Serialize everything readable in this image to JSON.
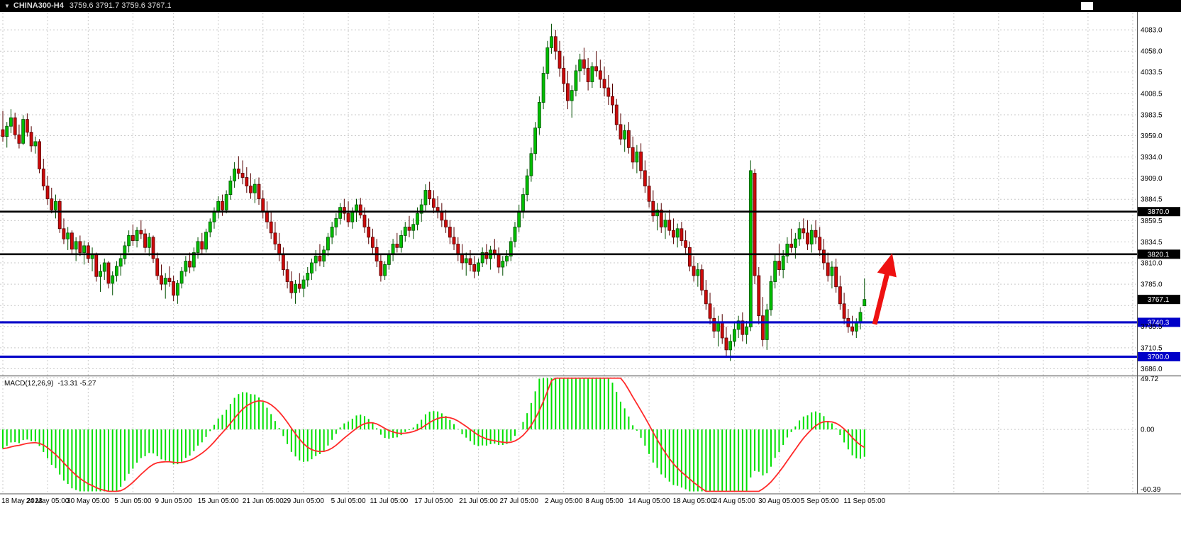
{
  "header": {
    "dropdown_icon": "▼",
    "symbol": "CHINA300-H4",
    "ohlc": "3759.6 3791.7 3759.6 3767.1"
  },
  "colors": {
    "background": "#FFFFFF",
    "grid": "#C9C9C9",
    "bull": "#00BE00",
    "bull_border": "#005000",
    "bear": "#CC0A0A",
    "bear_border": "#550000",
    "macd_hist": "#00DF00",
    "macd_signal": "#FF2A2A",
    "arrow": "#EE1111",
    "hline_black": "#000000",
    "hline_blue": "#0000C8",
    "axis_text": "#000000",
    "header_bg": "#000000",
    "header_text": "#DBDBDB",
    "badge_text": "#FFFFFF",
    "panel_border": "#808080"
  },
  "chart_data": {
    "type": "candlestick",
    "symbol": "CHINA300",
    "timeframe": "H4",
    "title": "CHINA300-H4",
    "ohlc_header": {
      "open": 3759.6,
      "high": 3791.7,
      "low": 3759.6,
      "close": 3767.1
    },
    "ylim": [
      3678,
      4103
    ],
    "grid": true,
    "price_axis_ticks": [
      "4083.0",
      "4058.0",
      "4033.5",
      "4008.5",
      "3983.5",
      "3959.0",
      "3934.0",
      "3909.0",
      "3884.5",
      "3859.5",
      "3834.5",
      "3810.0",
      "3785.0",
      "3760.0",
      "3735.5",
      "3710.5",
      "3686.0"
    ],
    "time_axis": [
      {
        "label": "18 May 2023",
        "i": 0
      },
      {
        "label": "24 May 05:00",
        "i": 11
      },
      {
        "label": "30 May 05:00",
        "i": 21
      },
      {
        "label": "5 Jun 05:00",
        "i": 32
      },
      {
        "label": "9 Jun 05:00",
        "i": 42
      },
      {
        "label": "15 Jun 05:00",
        "i": 53
      },
      {
        "label": "21 Jun 05:00",
        "i": 64
      },
      {
        "label": "29 Jun 05:00",
        "i": 74
      },
      {
        "label": "5 Jul 05:00",
        "i": 85
      },
      {
        "label": "11 Jul 05:00",
        "i": 95
      },
      {
        "label": "17 Jul 05:00",
        "i": 106
      },
      {
        "label": "21 Jul 05:00",
        "i": 117
      },
      {
        "label": "27 Jul 05:00",
        "i": 127
      },
      {
        "label": "2 Aug 05:00",
        "i": 138
      },
      {
        "label": "8 Aug 05:00",
        "i": 148
      },
      {
        "label": "14 Aug 05:00",
        "i": 159
      },
      {
        "label": "18 Aug 05:00",
        "i": 170
      },
      {
        "label": "24 Aug 05:00",
        "i": 180
      },
      {
        "label": "30 Aug 05:00",
        "i": 191
      },
      {
        "label": "5 Sep 05:00",
        "i": 201
      },
      {
        "label": "11 Sep 05:00",
        "i": 212
      }
    ],
    "hlines": [
      {
        "value": 3870.0,
        "label": "3870.0",
        "color": "#000000",
        "width": 2.6
      },
      {
        "value": 3820.1,
        "label": "3820.1",
        "color": "#000000",
        "width": 2.6
      },
      {
        "value": 3740.3,
        "label": "3740.3",
        "color": "#0000C8",
        "width": 3.2
      },
      {
        "value": 3700.0,
        "label": "3700.0",
        "color": "#0000C8",
        "width": 3.2
      }
    ],
    "last_price_badge": {
      "value": 3767.1,
      "label": "3767.1",
      "bg": "#000000"
    },
    "macd": {
      "label": "MACD(12,26,9)",
      "values_text": "-13.31 -5.27",
      "macd_value": -13.31,
      "signal_value": -5.27,
      "params": [
        12,
        26,
        9
      ],
      "scale": {
        "max": 49.72,
        "min": -60.39
      },
      "axis_ticks": [
        "49.72",
        "0.00",
        "-60.39"
      ]
    },
    "annotations": [
      {
        "type": "up-arrow",
        "color": "#EE1111",
        "from": {
          "i": 214.5,
          "price": 3738
        },
        "to": {
          "i": 218.5,
          "price": 3815
        }
      }
    ],
    "candles": [
      [
        3966,
        3988,
        3952,
        3958
      ],
      [
        3958,
        3975,
        3945,
        3970
      ],
      [
        3970,
        3990,
        3962,
        3980
      ],
      [
        3980,
        3986,
        3955,
        3960
      ],
      [
        3960,
        3972,
        3944,
        3950
      ],
      [
        3950,
        3983,
        3948,
        3978
      ],
      [
        3978,
        3985,
        3958,
        3963
      ],
      [
        3963,
        3970,
        3940,
        3947
      ],
      [
        3947,
        3958,
        3938,
        3952
      ],
      [
        3952,
        3955,
        3915,
        3920
      ],
      [
        3920,
        3932,
        3895,
        3900
      ],
      [
        3900,
        3912,
        3878,
        3885
      ],
      [
        3885,
        3898,
        3868,
        3872
      ],
      [
        3872,
        3890,
        3862,
        3882
      ],
      [
        3882,
        3885,
        3845,
        3850
      ],
      [
        3850,
        3862,
        3832,
        3838
      ],
      [
        3838,
        3852,
        3825,
        3845
      ],
      [
        3845,
        3848,
        3820,
        3826
      ],
      [
        3826,
        3840,
        3812,
        3835
      ],
      [
        3835,
        3842,
        3818,
        3822
      ],
      [
        3822,
        3836,
        3808,
        3830
      ],
      [
        3830,
        3834,
        3810,
        3815
      ],
      [
        3815,
        3828,
        3800,
        3820
      ],
      [
        3820,
        3822,
        3788,
        3794
      ],
      [
        3794,
        3808,
        3776,
        3800
      ],
      [
        3800,
        3815,
        3790,
        3810
      ],
      [
        3810,
        3812,
        3780,
        3786
      ],
      [
        3786,
        3800,
        3772,
        3795
      ],
      [
        3795,
        3812,
        3788,
        3806
      ],
      [
        3806,
        3820,
        3795,
        3815
      ],
      [
        3815,
        3835,
        3808,
        3830
      ],
      [
        3830,
        3848,
        3822,
        3842
      ],
      [
        3842,
        3855,
        3830,
        3836
      ],
      [
        3836,
        3852,
        3828,
        3848
      ],
      [
        3848,
        3860,
        3838,
        3844
      ],
      [
        3844,
        3850,
        3822,
        3828
      ],
      [
        3828,
        3845,
        3818,
        3840
      ],
      [
        3840,
        3842,
        3810,
        3815
      ],
      [
        3815,
        3822,
        3790,
        3795
      ],
      [
        3795,
        3808,
        3778,
        3785
      ],
      [
        3785,
        3798,
        3768,
        3792
      ],
      [
        3792,
        3806,
        3782,
        3788
      ],
      [
        3788,
        3795,
        3765,
        3772
      ],
      [
        3772,
        3790,
        3762,
        3786
      ],
      [
        3786,
        3805,
        3780,
        3800
      ],
      [
        3800,
        3818,
        3794,
        3812
      ],
      [
        3812,
        3822,
        3798,
        3805
      ],
      [
        3805,
        3828,
        3800,
        3822
      ],
      [
        3822,
        3840,
        3815,
        3835
      ],
      [
        3835,
        3845,
        3820,
        3826
      ],
      [
        3826,
        3850,
        3822,
        3846
      ],
      [
        3846,
        3862,
        3840,
        3858
      ],
      [
        3858,
        3875,
        3850,
        3870
      ],
      [
        3870,
        3888,
        3862,
        3882
      ],
      [
        3882,
        3890,
        3865,
        3872
      ],
      [
        3872,
        3895,
        3868,
        3890
      ],
      [
        3890,
        3912,
        3884,
        3906
      ],
      [
        3906,
        3928,
        3898,
        3920
      ],
      [
        3920,
        3935,
        3908,
        3915
      ],
      [
        3915,
        3930,
        3902,
        3910
      ],
      [
        3910,
        3922,
        3892,
        3900
      ],
      [
        3900,
        3915,
        3885,
        3892
      ],
      [
        3892,
        3908,
        3880,
        3902
      ],
      [
        3902,
        3910,
        3878,
        3885
      ],
      [
        3885,
        3895,
        3862,
        3870
      ],
      [
        3870,
        3882,
        3850,
        3858
      ],
      [
        3858,
        3870,
        3838,
        3845
      ],
      [
        3845,
        3858,
        3825,
        3832
      ],
      [
        3832,
        3845,
        3812,
        3820
      ],
      [
        3820,
        3828,
        3795,
        3802
      ],
      [
        3802,
        3812,
        3780,
        3788
      ],
      [
        3788,
        3800,
        3768,
        3775
      ],
      [
        3775,
        3790,
        3762,
        3785
      ],
      [
        3785,
        3798,
        3775,
        3780
      ],
      [
        3780,
        3795,
        3770,
        3790
      ],
      [
        3790,
        3805,
        3782,
        3798
      ],
      [
        3798,
        3815,
        3790,
        3810
      ],
      [
        3810,
        3825,
        3800,
        3818
      ],
      [
        3818,
        3832,
        3806,
        3812
      ],
      [
        3812,
        3830,
        3805,
        3825
      ],
      [
        3825,
        3845,
        3818,
        3840
      ],
      [
        3840,
        3858,
        3832,
        3852
      ],
      [
        3852,
        3868,
        3842,
        3862
      ],
      [
        3862,
        3880,
        3855,
        3875
      ],
      [
        3875,
        3885,
        3860,
        3868
      ],
      [
        3868,
        3882,
        3852,
        3858
      ],
      [
        3858,
        3875,
        3850,
        3870
      ],
      [
        3870,
        3885,
        3858,
        3878
      ],
      [
        3878,
        3886,
        3862,
        3866
      ],
      [
        3866,
        3875,
        3845,
        3852
      ],
      [
        3852,
        3862,
        3832,
        3840
      ],
      [
        3840,
        3850,
        3820,
        3828
      ],
      [
        3828,
        3838,
        3805,
        3812
      ],
      [
        3812,
        3820,
        3788,
        3795
      ],
      [
        3795,
        3812,
        3790,
        3808
      ],
      [
        3808,
        3825,
        3802,
        3820
      ],
      [
        3820,
        3838,
        3812,
        3832
      ],
      [
        3832,
        3845,
        3822,
        3828
      ],
      [
        3828,
        3848,
        3822,
        3842
      ],
      [
        3842,
        3858,
        3835,
        3852
      ],
      [
        3852,
        3865,
        3840,
        3848
      ],
      [
        3848,
        3862,
        3838,
        3855
      ],
      [
        3855,
        3875,
        3848,
        3868
      ],
      [
        3868,
        3885,
        3858,
        3878
      ],
      [
        3878,
        3902,
        3870,
        3895
      ],
      [
        3895,
        3905,
        3878,
        3885
      ],
      [
        3885,
        3895,
        3868,
        3875
      ],
      [
        3875,
        3888,
        3862,
        3870
      ],
      [
        3870,
        3880,
        3852,
        3860
      ],
      [
        3860,
        3872,
        3845,
        3852
      ],
      [
        3852,
        3860,
        3832,
        3840
      ],
      [
        3840,
        3852,
        3825,
        3832
      ],
      [
        3832,
        3840,
        3812,
        3820
      ],
      [
        3820,
        3832,
        3802,
        3810
      ],
      [
        3810,
        3822,
        3795,
        3815
      ],
      [
        3815,
        3825,
        3800,
        3808
      ],
      [
        3808,
        3818,
        3792,
        3800
      ],
      [
        3800,
        3815,
        3795,
        3810
      ],
      [
        3810,
        3828,
        3805,
        3822
      ],
      [
        3822,
        3832,
        3808,
        3815
      ],
      [
        3815,
        3830,
        3802,
        3825
      ],
      [
        3825,
        3838,
        3815,
        3820
      ],
      [
        3820,
        3828,
        3798,
        3805
      ],
      [
        3805,
        3818,
        3795,
        3812
      ],
      [
        3812,
        3825,
        3806,
        3818
      ],
      [
        3818,
        3840,
        3812,
        3835
      ],
      [
        3835,
        3858,
        3828,
        3852
      ],
      [
        3852,
        3878,
        3846,
        3870
      ],
      [
        3870,
        3898,
        3862,
        3890
      ],
      [
        3890,
        3920,
        3882,
        3912
      ],
      [
        3912,
        3945,
        3905,
        3938
      ],
      [
        3938,
        3975,
        3930,
        3968
      ],
      [
        3968,
        4005,
        3960,
        3998
      ],
      [
        3998,
        4040,
        3990,
        4032
      ],
      [
        4032,
        4070,
        4025,
        4062
      ],
      [
        4062,
        4090,
        4055,
        4075
      ],
      [
        4075,
        4083,
        4048,
        4058
      ],
      [
        4058,
        4070,
        4028,
        4038
      ],
      [
        4038,
        4052,
        4010,
        4020
      ],
      [
        4020,
        4035,
        3990,
        4000
      ],
      [
        4000,
        4018,
        3980,
        4012
      ],
      [
        4012,
        4042,
        4005,
        4035
      ],
      [
        4035,
        4055,
        4022,
        4048
      ],
      [
        4048,
        4062,
        4030,
        4038
      ],
      [
        4038,
        4050,
        4012,
        4022
      ],
      [
        4022,
        4045,
        4015,
        4040
      ],
      [
        4040,
        4058,
        4028,
        4035
      ],
      [
        4035,
        4048,
        4015,
        4025
      ],
      [
        4025,
        4040,
        4005,
        4015
      ],
      [
        4015,
        4030,
        3995,
        4005
      ],
      [
        4005,
        4020,
        3985,
        3995
      ],
      [
        3995,
        4002,
        3965,
        3972
      ],
      [
        3972,
        3985,
        3948,
        3955
      ],
      [
        3955,
        3972,
        3940,
        3965
      ],
      [
        3965,
        3975,
        3938,
        3945
      ],
      [
        3945,
        3958,
        3920,
        3928
      ],
      [
        3928,
        3948,
        3915,
        3940
      ],
      [
        3940,
        3950,
        3908,
        3918
      ],
      [
        3918,
        3930,
        3892,
        3900
      ],
      [
        3900,
        3912,
        3875,
        3882
      ],
      [
        3882,
        3895,
        3858,
        3865
      ],
      [
        3865,
        3880,
        3848,
        3872
      ],
      [
        3872,
        3880,
        3845,
        3852
      ],
      [
        3852,
        3868,
        3838,
        3860
      ],
      [
        3860,
        3872,
        3842,
        3848
      ],
      [
        3848,
        3862,
        3832,
        3840
      ],
      [
        3840,
        3856,
        3828,
        3850
      ],
      [
        3850,
        3858,
        3830,
        3836
      ],
      [
        3836,
        3848,
        3820,
        3828
      ],
      [
        3828,
        3835,
        3800,
        3806
      ],
      [
        3806,
        3818,
        3788,
        3795
      ],
      [
        3795,
        3810,
        3782,
        3802
      ],
      [
        3802,
        3808,
        3772,
        3778
      ],
      [
        3778,
        3790,
        3755,
        3762
      ],
      [
        3762,
        3775,
        3738,
        3745
      ],
      [
        3745,
        3758,
        3722,
        3730
      ],
      [
        3730,
        3748,
        3712,
        3740
      ],
      [
        3740,
        3750,
        3715,
        3722
      ],
      [
        3722,
        3735,
        3700,
        3708
      ],
      [
        3708,
        3726,
        3695,
        3718
      ],
      [
        3718,
        3740,
        3712,
        3732
      ],
      [
        3732,
        3748,
        3722,
        3742
      ],
      [
        3742,
        3752,
        3718,
        3726
      ],
      [
        3726,
        3742,
        3715,
        3735
      ],
      [
        3735,
        3930,
        3730,
        3918
      ],
      [
        3915,
        3920,
        3785,
        3795
      ],
      [
        3795,
        3805,
        3738,
        3748
      ],
      [
        3748,
        3770,
        3712,
        3720
      ],
      [
        3720,
        3762,
        3708,
        3755
      ],
      [
        3755,
        3795,
        3748,
        3788
      ],
      [
        3788,
        3820,
        3780,
        3812
      ],
      [
        3812,
        3832,
        3795,
        3802
      ],
      [
        3802,
        3825,
        3792,
        3818
      ],
      [
        3818,
        3840,
        3810,
        3832
      ],
      [
        3832,
        3850,
        3822,
        3828
      ],
      [
        3828,
        3845,
        3815,
        3838
      ],
      [
        3838,
        3858,
        3830,
        3850
      ],
      [
        3850,
        3862,
        3838,
        3845
      ],
      [
        3845,
        3860,
        3825,
        3832
      ],
      [
        3832,
        3855,
        3822,
        3848
      ],
      [
        3848,
        3860,
        3832,
        3840
      ],
      [
        3840,
        3852,
        3818,
        3825
      ],
      [
        3825,
        3838,
        3802,
        3810
      ],
      [
        3810,
        3822,
        3788,
        3795
      ],
      [
        3795,
        3812,
        3780,
        3805
      ],
      [
        3805,
        3815,
        3775,
        3782
      ],
      [
        3782,
        3795,
        3755,
        3762
      ],
      [
        3762,
        3775,
        3738,
        3745
      ],
      [
        3745,
        3756,
        3728,
        3735
      ],
      [
        3735,
        3748,
        3725,
        3730
      ],
      [
        3730,
        3745,
        3722,
        3740
      ],
      [
        3740,
        3758,
        3732,
        3752
      ],
      [
        3759.6,
        3791.7,
        3759.6,
        3767.1
      ]
    ]
  }
}
